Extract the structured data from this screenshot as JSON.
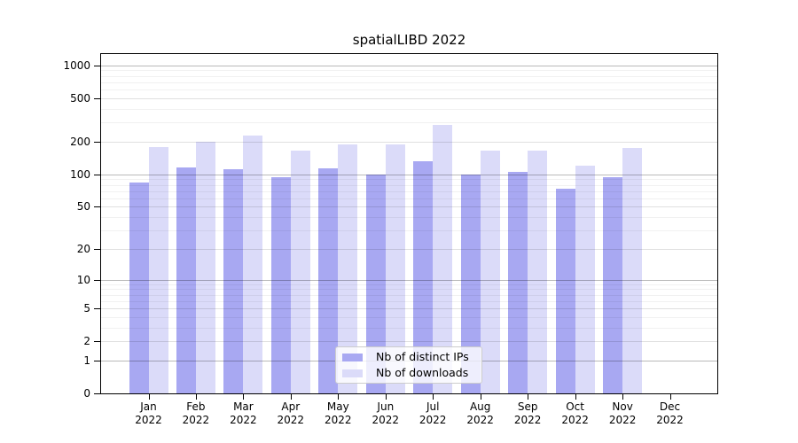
{
  "chart_data": {
    "type": "bar",
    "title": "spatialLIBD 2022",
    "categories": [
      "Jan",
      "Feb",
      "Mar",
      "Apr",
      "May",
      "Jun",
      "Jul",
      "Aug",
      "Sep",
      "Oct",
      "Nov",
      "Dec"
    ],
    "category_year": "2022",
    "series": [
      {
        "name": "Nb of distinct IPs",
        "color": "#a8a8f2",
        "values": [
          84,
          115,
          112,
          94,
          113,
          100,
          131,
          100,
          105,
          74,
          94,
          0
        ]
      },
      {
        "name": "Nb of downloads",
        "color": "#dbdbf9",
        "values": [
          177,
          198,
          228,
          165,
          188,
          189,
          283,
          165,
          165,
          120,
          174,
          0
        ]
      }
    ],
    "y_axis": {
      "scale": "log1p",
      "ticks": [
        0,
        1,
        2,
        5,
        10,
        20,
        50,
        100,
        200,
        500,
        1000
      ],
      "ylim": [
        0,
        1270
      ],
      "grid": true
    },
    "legend": {
      "position": "lower-center"
    }
  }
}
